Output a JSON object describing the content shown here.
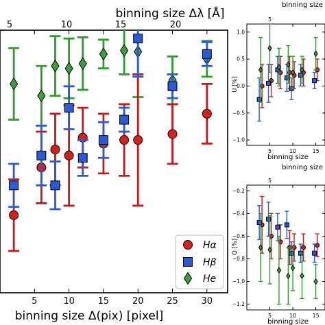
{
  "chart_data": [
    {
      "type": "scatter",
      "xlabel_bottom": "binning size Δ(pix) [pixel]",
      "xlabel_top": "binning size Δλ [Å]",
      "ylabel": "",
      "xlim": [
        0,
        33
      ],
      "ylim": [
        -1.2,
        1.0
      ],
      "x_ticks": [
        5,
        10,
        15,
        20,
        25,
        30
      ],
      "x_ticklabels": [
        "5",
        "10",
        "15",
        "20",
        "25",
        "30"
      ],
      "top_ticks": [
        5,
        10,
        15,
        20
      ],
      "top_ticklabels": [
        "5",
        "10",
        "15",
        "20"
      ],
      "legend_position": "bottom-right",
      "series": [
        {
          "name": "Hα",
          "marker": "circle",
          "color": "#d62020",
          "errcolor": "#c81818",
          "points": [
            {
              "x": 2,
              "y": -0.55,
              "err": 0.3
            },
            {
              "x": 6,
              "y": -0.15,
              "err": 0.3
            },
            {
              "x": 8,
              "y": 0.0,
              "err": 0.3
            },
            {
              "x": 10,
              "y": -0.05,
              "err": 0.42
            },
            {
              "x": 12,
              "y": 0.1,
              "err": 0.25
            },
            {
              "x": 15,
              "y": 0.05,
              "err": 0.25
            },
            {
              "x": 18,
              "y": 0.08,
              "err": 0.3
            },
            {
              "x": 20,
              "y": 0.08,
              "err": 0.55
            },
            {
              "x": 25,
              "y": 0.13,
              "err": 0.25
            },
            {
              "x": 30,
              "y": 0.3,
              "err": 0.25
            }
          ]
        },
        {
          "name": "Hβ",
          "marker": "square",
          "color": "#2a5ad8",
          "errcolor": "#2a5ad8",
          "points": [
            {
              "x": 2,
              "y": -0.3,
              "err": 0.18
            },
            {
              "x": 6,
              "y": -0.05,
              "err": 0.25
            },
            {
              "x": 8,
              "y": -0.3,
              "err": 0.2
            },
            {
              "x": 10,
              "y": 0.35,
              "err": 0.18
            },
            {
              "x": 12,
              "y": -0.07,
              "err": 0.15
            },
            {
              "x": 15,
              "y": 0.08,
              "err": 0.15
            },
            {
              "x": 18,
              "y": 0.25,
              "err": 0.1
            },
            {
              "x": 20,
              "y": 0.93,
              "err": 0.32
            },
            {
              "x": 25,
              "y": 0.53,
              "err": 0.1
            },
            {
              "x": 30,
              "y": 0.8,
              "err": 0.1
            }
          ]
        },
        {
          "name": "He",
          "marker": "diamond",
          "color": "#3aa03a",
          "errcolor": "#2aa02a",
          "points": [
            {
              "x": 2,
              "y": 0.55,
              "err": 0.3
            },
            {
              "x": 6,
              "y": 0.45,
              "err": 0.25
            },
            {
              "x": 8,
              "y": 0.7,
              "err": 0.25
            },
            {
              "x": 10,
              "y": 0.68,
              "err": 0.25
            },
            {
              "x": 12,
              "y": 0.72,
              "err": 0.22
            },
            {
              "x": 15,
              "y": 0.8,
              "err": 0.12
            },
            {
              "x": 18,
              "y": 0.83,
              "err": 0.2
            },
            {
              "x": 20,
              "y": 0.82,
              "err": 0.38
            },
            {
              "x": 25,
              "y": 0.58,
              "err": 0.2
            },
            {
              "x": 30,
              "y": 0.76,
              "err": 0.15
            }
          ]
        }
      ]
    },
    {
      "type": "scatter",
      "ylabel": "U [%]",
      "xlabel_bottom": "binning size",
      "xlabel_top": "binning size",
      "xlim": [
        0,
        17
      ],
      "ylim": [
        -1.1,
        1.15
      ],
      "x_ticks": [
        5,
        10,
        15
      ],
      "x_ticklabels": [
        "5",
        "10",
        "15"
      ],
      "y_ticks": [
        -1.0,
        -0.5,
        0.0,
        0.5,
        1.0
      ],
      "y_ticklabels": [
        "−1.0",
        "−0.5",
        "0.0",
        "0.5",
        "1.0"
      ],
      "top_ticks": [
        5
      ],
      "top_ticklabels": [
        "5"
      ],
      "series": [
        {
          "name": "Hα",
          "points": [
            {
              "x": 3,
              "y": 0.0,
              "err": 0.4
            },
            {
              "x": 5,
              "y": 0.1,
              "err": 0.3
            },
            {
              "x": 7,
              "y": 0.25,
              "err": 0.3
            },
            {
              "x": 9,
              "y": 0.25,
              "err": 0.3
            },
            {
              "x": 10,
              "y": 0.2,
              "err": 0.25
            },
            {
              "x": 12,
              "y": 0.25,
              "err": 0.25
            },
            {
              "x": 15,
              "y": 0.3,
              "err": 0.2
            }
          ]
        },
        {
          "name": "Hβ",
          "points": [
            {
              "x": 3,
              "y": -0.25,
              "err": 0.4
            },
            {
              "x": 5,
              "y": 0.05,
              "err": 0.35
            },
            {
              "x": 7,
              "y": 0.3,
              "err": 0.25
            },
            {
              "x": 9,
              "y": 0.15,
              "err": 0.25
            },
            {
              "x": 10,
              "y": -0.05,
              "err": 0.2
            },
            {
              "x": 12,
              "y": 0.2,
              "err": 0.2
            },
            {
              "x": 15,
              "y": 0.1,
              "err": 0.15
            }
          ]
        },
        {
          "name": "He",
          "points": [
            {
              "x": 3,
              "y": 0.3,
              "err": 0.6
            },
            {
              "x": 5,
              "y": 0.7,
              "err": 0.45
            },
            {
              "x": 7,
              "y": 0.35,
              "err": 0.35
            },
            {
              "x": 9,
              "y": 0.4,
              "err": 0.35
            },
            {
              "x": 10,
              "y": 0.25,
              "err": 0.3
            },
            {
              "x": 12,
              "y": 0.3,
              "err": 0.25
            },
            {
              "x": 15,
              "y": 0.6,
              "err": 0.3
            }
          ]
        }
      ]
    },
    {
      "type": "scatter",
      "ylabel": "Q [%]",
      "xlabel_bottom": "binning size",
      "xlabel_top": "binning size",
      "xlim": [
        0,
        17
      ],
      "ylim": [
        -1.25,
        -0.15
      ],
      "x_ticks": [
        5,
        10,
        15
      ],
      "x_ticklabels": [
        "5",
        "10",
        "15"
      ],
      "y_ticks": [
        -1.2,
        -1.0,
        -0.8,
        -0.6,
        -0.4,
        -0.2
      ],
      "y_ticklabels": [
        "−1.2",
        "−1.0",
        "−0.8",
        "−0.6",
        "−0.4",
        "−0.2"
      ],
      "top_ticks": [
        5
      ],
      "top_ticklabels": [
        "5"
      ],
      "series": [
        {
          "name": "Hα",
          "points": [
            {
              "x": 3,
              "y": -0.5,
              "err": 0.25
            },
            {
              "x": 5,
              "y": -0.6,
              "err": 0.2
            },
            {
              "x": 7,
              "y": -0.65,
              "err": 0.15
            },
            {
              "x": 9,
              "y": -0.7,
              "err": 0.15
            },
            {
              "x": 10,
              "y": -0.7,
              "err": 0.12
            },
            {
              "x": 12,
              "y": -0.7,
              "err": 0.12
            },
            {
              "x": 15,
              "y": -0.68,
              "err": 0.1
            }
          ]
        },
        {
          "name": "Hβ",
          "points": [
            {
              "x": 3,
              "y": -0.48,
              "err": 0.15
            },
            {
              "x": 5,
              "y": -0.45,
              "err": 0.15
            },
            {
              "x": 7,
              "y": -0.52,
              "err": 0.12
            },
            {
              "x": 9,
              "y": -0.5,
              "err": 0.12
            },
            {
              "x": 10,
              "y": -0.75,
              "err": 0.1
            },
            {
              "x": 12,
              "y": -0.75,
              "err": 0.08
            },
            {
              "x": 15,
              "y": -0.75,
              "err": 0.08
            }
          ]
        },
        {
          "name": "He",
          "points": [
            {
              "x": 3,
              "y": -0.7,
              "err": 0.3
            },
            {
              "x": 5,
              "y": -0.72,
              "err": 0.3
            },
            {
              "x": 7,
              "y": -0.9,
              "err": 0.3
            },
            {
              "x": 9,
              "y": -0.95,
              "err": 0.25
            },
            {
              "x": 10,
              "y": -0.88,
              "err": 0.2
            },
            {
              "x": 12,
              "y": -0.95,
              "err": 0.2
            },
            {
              "x": 15,
              "y": -1.0,
              "err": 0.15
            }
          ]
        }
      ]
    }
  ]
}
